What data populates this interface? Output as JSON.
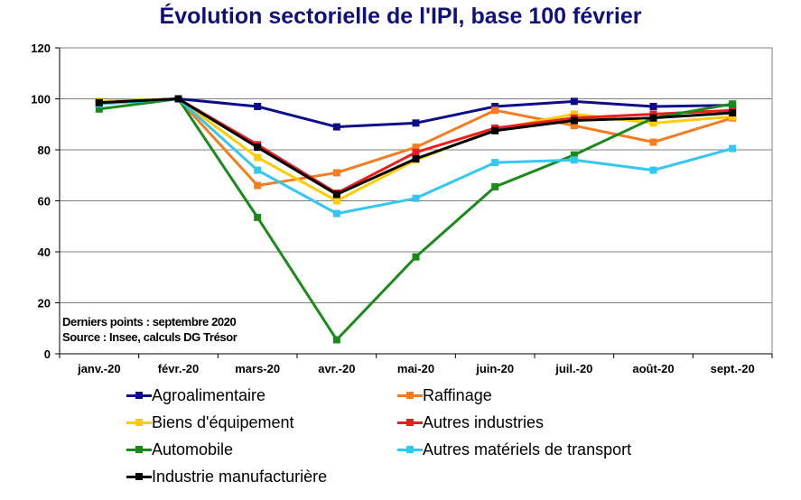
{
  "chart_data": {
    "type": "line",
    "title": "Évolution sectorielle de l'IPI, base 100 février",
    "categories": [
      "janv.-20",
      "févr.-20",
      "mars-20",
      "avr.-20",
      "mai-20",
      "juin-20",
      "juil.-20",
      "août-20",
      "sept.-20"
    ],
    "ylim": [
      0,
      120
    ],
    "yticks": [
      0,
      20,
      40,
      60,
      80,
      100,
      120
    ],
    "grid": true,
    "xlabel": "",
    "ylabel": "",
    "series": [
      {
        "name": "Agroalimentaire",
        "color": "#0d0d8a",
        "values": [
          98.5,
          100,
          97,
          89,
          90.5,
          97,
          99,
          97,
          97.5
        ]
      },
      {
        "name": "Raffinage",
        "color": "#f57c20",
        "values": [
          98,
          100,
          66,
          71,
          81,
          95.5,
          89.5,
          83,
          92.5
        ]
      },
      {
        "name": "Biens d'équipement",
        "color": "#ffcc00",
        "values": [
          99,
          100,
          77,
          60,
          76,
          88,
          94,
          90.5,
          93
        ]
      },
      {
        "name": "Autres industries",
        "color": "#ee1c1c",
        "values": [
          98.5,
          100,
          82,
          63,
          79,
          88.5,
          92.5,
          94,
          95.5
        ]
      },
      {
        "name": "Automobile",
        "color": "#1a8a1a",
        "values": [
          96,
          100,
          53.5,
          5.5,
          38,
          65.5,
          78,
          92.5,
          98
        ]
      },
      {
        "name": "Autres matériels de transport",
        "color": "#33c7f2",
        "values": [
          98,
          100,
          72,
          55,
          61,
          75,
          76,
          72,
          80.5
        ]
      },
      {
        "name": "Industrie manufacturière",
        "color": "#000000",
        "values": [
          98.5,
          100,
          81,
          62.5,
          76.5,
          87.5,
          91.5,
          92.5,
          94.5
        ]
      }
    ],
    "annotations": [
      "Derniers points : septembre 2020",
      "Source : Insee, calculs DG Trésor"
    ]
  }
}
